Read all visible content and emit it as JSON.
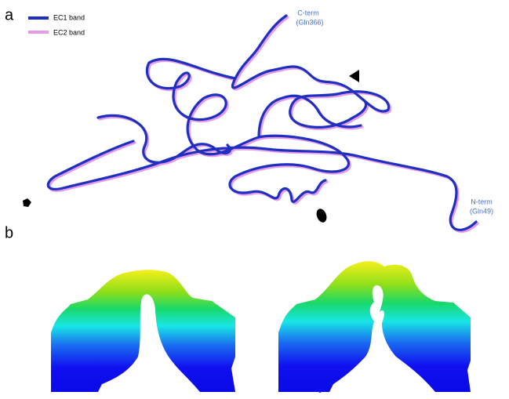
{
  "panels": [
    {
      "label": "a",
      "legend": [
        {
          "name": "EC1 band",
          "color": "#1f2fbf"
        },
        {
          "name": "EC2 band",
          "color": "#e59be5"
        }
      ],
      "annotations": [
        {
          "text": "C-term",
          "sub": "(Gln366)"
        },
        {
          "text": "N-term",
          "sub": "(Gln49)"
        }
      ]
    },
    {
      "label": "b"
    }
  ]
}
